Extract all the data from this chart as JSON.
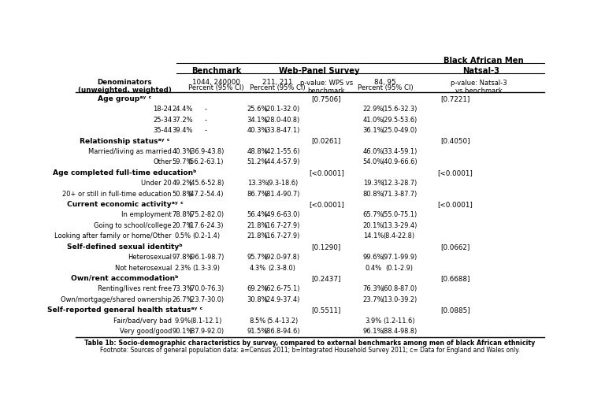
{
  "title_right": "Black African Men",
  "col_headers": [
    "Benchmark",
    "Web-Panel Survey",
    "Natsal-3"
  ],
  "denom_benchmark": "1044, 240000",
  "denom_wps": "211, 211",
  "wps_pval_label": "p-value: WPS vs\nbenchmark",
  "denom_natsal": "84, 95",
  "natsal_pval_label": "p-value: Natsal-3\nvs benchmark",
  "pct_ci_label": "Percent (95% CI)",
  "denom_label": "Denominators\n(unweighted, weighted)",
  "rows": [
    {
      "label": "Age groupᵃʸ ᶜ",
      "type": "header",
      "wps_pval": "[0.7506]",
      "natsal_pval": "[0.7221]"
    },
    {
      "label": "18-24",
      "type": "data",
      "bench_pct": "24.4%",
      "bench_ci": "-",
      "wps_pct": "25.6%",
      "wps_ci": "(20.1-32.0)",
      "natsal_pct": "22.9%",
      "natsal_ci": "(15.6-32.3)"
    },
    {
      "label": "25-34",
      "type": "data",
      "bench_pct": "37.2%",
      "bench_ci": "-",
      "wps_pct": "34.1%",
      "wps_ci": "(28.0-40.8)",
      "natsal_pct": "41.0%",
      "natsal_ci": "(29.5-53.6)"
    },
    {
      "label": "35-44",
      "type": "data",
      "bench_pct": "39.4%",
      "bench_ci": "-",
      "wps_pct": "40.3%",
      "wps_ci": "(33.8-47.1)",
      "natsal_pct": "36.1%",
      "natsal_ci": "(25.0-49.0)"
    },
    {
      "label": "Relationship statusᵃʸ ᶜ",
      "type": "header",
      "wps_pval": "[0.0261]",
      "natsal_pval": "[0.4050]"
    },
    {
      "label": "Married/living as married",
      "type": "data",
      "bench_pct": "40.3%",
      "bench_ci": "(36.9-43.8)",
      "wps_pct": "48.8%",
      "wps_ci": "(42.1-55.6)",
      "natsal_pct": "46.0%",
      "natsal_ci": "(33.4-59.1)"
    },
    {
      "label": "Other",
      "type": "data",
      "bench_pct": "59.7%",
      "bench_ci": "(56.2-63.1)",
      "wps_pct": "51.2%",
      "wps_ci": "(44.4-57.9)",
      "natsal_pct": "54.0%",
      "natsal_ci": "(40.9-66.6)"
    },
    {
      "label": "Age completed full-time educationᵇ",
      "type": "header",
      "wps_pval": "[<0.0001]",
      "natsal_pval": "[<0.0001]"
    },
    {
      "label": "Under 20",
      "type": "data",
      "bench_pct": "49.2%",
      "bench_ci": "(45.6-52.8)",
      "wps_pct": "13.3%",
      "wps_ci": "(9.3-18.6)",
      "natsal_pct": "19.3%",
      "natsal_ci": "(12.3-28.7)"
    },
    {
      "label": "20+ or still in full-time education",
      "type": "data",
      "bench_pct": "50.8%",
      "bench_ci": "(47.2-54.4)",
      "wps_pct": "86.7%",
      "wps_ci": "(81.4-90.7)",
      "natsal_pct": "80.8%",
      "natsal_ci": "(71.3-87.7)"
    },
    {
      "label": "Current economic activityᵃʸ ᶜ",
      "type": "header",
      "wps_pval": "[<0.0001]",
      "natsal_pval": "[<0.0001]"
    },
    {
      "label": "In employment",
      "type": "data",
      "bench_pct": "78.8%",
      "bench_ci": "(75.2-82.0)",
      "wps_pct": "56.4%",
      "wps_ci": "(49.6-63.0)",
      "natsal_pct": "65.7%",
      "natsal_ci": "(55.0-75.1)"
    },
    {
      "label": "Going to school/college",
      "type": "data",
      "bench_pct": "20.7%",
      "bench_ci": "(17.6-24.3)",
      "wps_pct": "21.8%",
      "wps_ci": "(16.7-27.9)",
      "natsal_pct": "20.1%",
      "natsal_ci": "(13.3-29.4)"
    },
    {
      "label": "Looking after family or home/Other",
      "type": "data",
      "bench_pct": "0.5%",
      "bench_ci": "(0.2-1.4)",
      "wps_pct": "21.8%",
      "wps_ci": "(16.7-27.9)",
      "natsal_pct": "14.1%",
      "natsal_ci": "(8.4-22.8)"
    },
    {
      "label": "Self-defined sexual identityᵇ",
      "type": "header",
      "wps_pval": "[0.1290]",
      "natsal_pval": "[0.0662]"
    },
    {
      "label": "Heterosexual",
      "type": "data",
      "bench_pct": "97.8%",
      "bench_ci": "(96.1-98.7)",
      "wps_pct": "95.7%",
      "wps_ci": "(92.0-97.8)",
      "natsal_pct": "99.6%",
      "natsal_ci": "(97.1-99.9)"
    },
    {
      "label": "Not heterosexual",
      "type": "data",
      "bench_pct": "2.3%",
      "bench_ci": "(1.3-3.9)",
      "wps_pct": "4.3%",
      "wps_ci": "(2.3-8.0)",
      "natsal_pct": "0.4%",
      "natsal_ci": "(0.1-2.9)"
    },
    {
      "label": "Own/rent accommodationᵇ",
      "type": "header",
      "wps_pval": "[0.2437]",
      "natsal_pval": "[0.6688]"
    },
    {
      "label": "Renting/lives rent free",
      "type": "data",
      "bench_pct": "73.3%",
      "bench_ci": "(70.0-76.3)",
      "wps_pct": "69.2%",
      "wps_ci": "(62.6-75.1)",
      "natsal_pct": "76.3%",
      "natsal_ci": "(60.8-87.0)"
    },
    {
      "label": "Own/mortgage/shared ownership",
      "type": "data",
      "bench_pct": "26.7%",
      "bench_ci": "(23.7-30.0)",
      "wps_pct": "30.8%",
      "wps_ci": "(24.9-37.4)",
      "natsal_pct": "23.7%",
      "natsal_ci": "(13.0-39.2)"
    },
    {
      "label": "Self-reported general health statusᵃʸ ᶜ",
      "type": "header",
      "wps_pval": "[0.5511]",
      "natsal_pval": "[0.0885]"
    },
    {
      "label": "Fair/bad/very bad",
      "type": "data",
      "bench_pct": "9.9%",
      "bench_ci": "(8.1-12.1)",
      "wps_pct": "8.5%",
      "wps_ci": "(5.4-13.2)",
      "natsal_pct": "3.9%",
      "natsal_ci": "(1.2-11.6)"
    },
    {
      "label": "Very good/good",
      "type": "data",
      "bench_pct": "90.1%",
      "bench_ci": "(87.9-92.0)",
      "wps_pct": "91.5%",
      "wps_ci": "(86.8-94.6)",
      "natsal_pct": "96.1%",
      "natsal_ci": "(88.4-98.8)"
    }
  ],
  "footer1": "Table 1b: Socio-demographic characteristics by survey, compared to external benchmarks among men of black African ethnicity",
  "footer2": "Footnote: Sources of general population data: a=Census 2011; b=Integrated Household Survey 2011; c= Data for England and Wales only.",
  "bg_color": "#ffffff",
  "blue_color": "#1f5c99"
}
